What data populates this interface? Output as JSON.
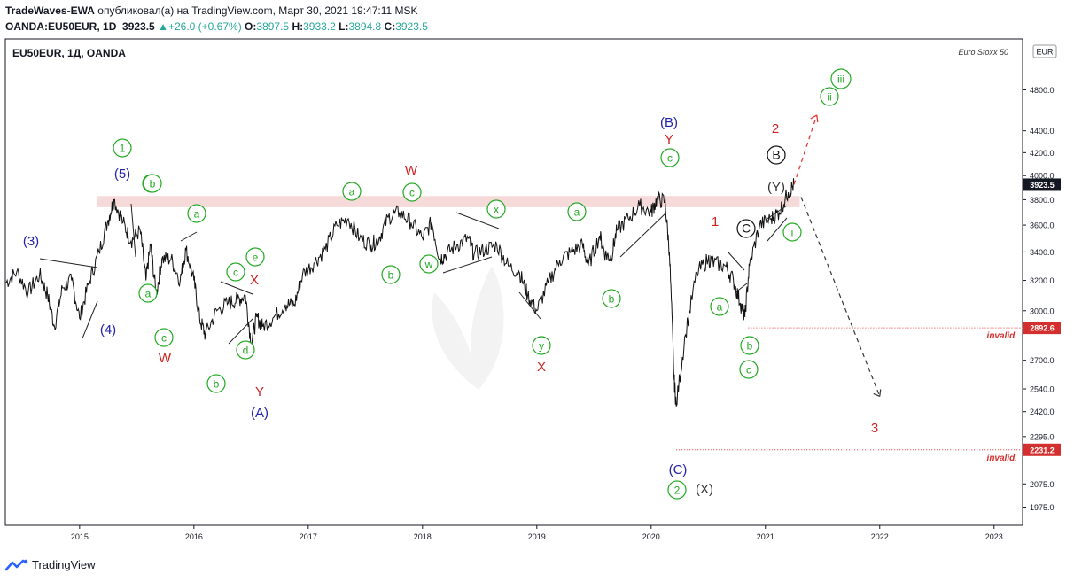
{
  "header": {
    "author": "TradeWaves-EWA",
    "published_text": "опубликовал(а) на TradingView.com, Март 30, 2021 19:47:11 MSK",
    "symbol": "OANDA:EU50EUR, 1D",
    "last": "3923.5",
    "change_arrow": "▲",
    "change": "+26.0 (+0.67%)",
    "o_label": "O:",
    "o": "3897.5",
    "h_label": "H:",
    "h": "3933.2",
    "l_label": "L:",
    "l": "3894.8",
    "c_label": "C:",
    "c": "3923.5"
  },
  "chart_data": {
    "type": "line",
    "title": "EU50EUR, 1Д, OANDA",
    "watermark": "Euro Stoxx 50",
    "currency": "EUR",
    "scale": "log",
    "ylim": [
      1900,
      5350
    ],
    "y_ticks": [
      "4800.0",
      "4400.0",
      "4200.0",
      "4000.0",
      "3800.0",
      "3600.0",
      "3400.0",
      "3200.0",
      "3000.0",
      "2700.0",
      "2540.0",
      "2420.0",
      "2295.0",
      "2075.0",
      "1975.0"
    ],
    "x_ticks": [
      "2015",
      "2016",
      "2017",
      "2018",
      "2019",
      "2020",
      "2021",
      "2022",
      "2023"
    ],
    "xlim": [
      2014.35,
      2023.25
    ],
    "grid": false,
    "price_tags": [
      {
        "value": 3923.5,
        "label": "3923.5",
        "color": "#131722"
      },
      {
        "value": 2892.6,
        "label": "2892.6",
        "color": "#d32f2f"
      },
      {
        "value": 2231.2,
        "label": "2231.2",
        "color": "#d32f2f"
      }
    ],
    "invalidation_labels": [
      "invalid.",
      "invalid."
    ],
    "resistance_zone": [
      3740,
      3830
    ],
    "series": [
      {
        "x": [
          2014.35,
          2014.45,
          2014.55,
          2014.65,
          2014.72,
          2014.78,
          2014.85,
          2014.93,
          2015.0,
          2015.08,
          2015.17,
          2015.25,
          2015.3,
          2015.38,
          2015.45,
          2015.53,
          2015.58,
          2015.62,
          2015.67,
          2015.72,
          2015.8,
          2015.88,
          2015.93,
          2016.0,
          2016.05,
          2016.1,
          2016.2,
          2016.3,
          2016.38,
          2016.45,
          2016.5,
          2016.55,
          2016.6,
          2016.7,
          2016.8,
          2016.88,
          2016.95,
          2017.05,
          2017.15,
          2017.25,
          2017.35,
          2017.45,
          2017.55,
          2017.62,
          2017.7,
          2017.8,
          2017.9,
          2018.0,
          2018.08,
          2018.15,
          2018.2,
          2018.3,
          2018.4,
          2018.45,
          2018.55,
          2018.65,
          2018.75,
          2018.85,
          2018.92,
          2019.0,
          2019.1,
          2019.2,
          2019.3,
          2019.4,
          2019.45,
          2019.55,
          2019.6,
          2019.65,
          2019.7,
          2019.8,
          2019.9,
          2020.0,
          2020.05,
          2020.12,
          2020.16,
          2020.2,
          2020.22,
          2020.3,
          2020.4,
          2020.5,
          2020.55,
          2020.65,
          2020.72,
          2020.78,
          2020.82,
          2020.86,
          2020.95,
          2021.05,
          2021.12,
          2021.2,
          2021.25
        ],
        "values": [
          3180,
          3260,
          3120,
          3240,
          3100,
          2900,
          3150,
          3200,
          2950,
          3180,
          3400,
          3640,
          3800,
          3620,
          3480,
          3560,
          3200,
          3450,
          3100,
          3350,
          3350,
          3200,
          3420,
          3200,
          2950,
          2850,
          3000,
          3050,
          3070,
          3100,
          2800,
          2960,
          2900,
          2960,
          3040,
          3040,
          3240,
          3320,
          3420,
          3600,
          3650,
          3500,
          3450,
          3500,
          3660,
          3700,
          3620,
          3500,
          3620,
          3350,
          3380,
          3450,
          3500,
          3380,
          3420,
          3450,
          3300,
          3250,
          3100,
          3000,
          3180,
          3340,
          3400,
          3450,
          3300,
          3520,
          3380,
          3360,
          3560,
          3650,
          3750,
          3700,
          3800,
          3790,
          3400,
          2600,
          2450,
          2850,
          3250,
          3350,
          3320,
          3300,
          3200,
          3050,
          2960,
          3300,
          3600,
          3650,
          3700,
          3860,
          3923.5
        ]
      }
    ],
    "projection": {
      "up_target": 4550,
      "down_target": 2500
    },
    "wave_labels": [
      {
        "text": "(3)",
        "style": "plain",
        "color": "#2222aa"
      },
      {
        "text": "(4)",
        "style": "plain",
        "color": "#2222aa"
      },
      {
        "text": "1",
        "style": "circle",
        "color": "#22aa22"
      },
      {
        "text": "(5)",
        "style": "plain",
        "color": "#2222aa"
      },
      {
        "text": "b",
        "style": "circle",
        "color": "#22aa22"
      },
      {
        "text": "a",
        "style": "circle",
        "color": "#22aa22"
      },
      {
        "text": "a",
        "style": "circle",
        "color": "#22aa22"
      },
      {
        "text": "c",
        "style": "circle",
        "color": "#22aa22"
      },
      {
        "text": "W",
        "style": "plain",
        "color": "#cc2222"
      },
      {
        "text": "b",
        "style": "circle",
        "color": "#22aa22"
      },
      {
        "text": "c",
        "style": "circle",
        "color": "#22aa22"
      },
      {
        "text": "e",
        "style": "circle",
        "color": "#22aa22"
      },
      {
        "text": "X",
        "style": "plain",
        "color": "#cc2222"
      },
      {
        "text": "d",
        "style": "circle",
        "color": "#22aa22"
      },
      {
        "text": "Y",
        "style": "plain",
        "color": "#cc2222"
      },
      {
        "text": "(A)",
        "style": "plain",
        "color": "#2222aa"
      },
      {
        "text": "a",
        "style": "circle",
        "color": "#22aa22"
      },
      {
        "text": "W",
        "style": "plain",
        "color": "#cc2222"
      },
      {
        "text": "c",
        "style": "circle",
        "color": "#22aa22"
      },
      {
        "text": "b",
        "style": "circle",
        "color": "#22aa22"
      },
      {
        "text": "w",
        "style": "circle",
        "color": "#22aa22"
      },
      {
        "text": "x",
        "style": "circle",
        "color": "#22aa22"
      },
      {
        "text": "y",
        "style": "circle",
        "color": "#22aa22"
      },
      {
        "text": "X",
        "style": "plain",
        "color": "#cc2222"
      },
      {
        "text": "a",
        "style": "circle",
        "color": "#22aa22"
      },
      {
        "text": "b",
        "style": "circle",
        "color": "#22aa22"
      },
      {
        "text": "(B)",
        "style": "plain",
        "color": "#2222aa"
      },
      {
        "text": "Y",
        "style": "plain",
        "color": "#cc2222"
      },
      {
        "text": "c",
        "style": "circle",
        "color": "#22aa22"
      },
      {
        "text": "(C)",
        "style": "plain",
        "color": "#2222aa"
      },
      {
        "text": "2",
        "style": "circle",
        "color": "#22aa22"
      },
      {
        "text": "(X)",
        "style": "plain",
        "color": "#333333"
      },
      {
        "text": "1",
        "style": "plain",
        "color": "#cc2222"
      },
      {
        "text": "a",
        "style": "circle",
        "color": "#22aa22"
      },
      {
        "text": "b",
        "style": "circle",
        "color": "#22aa22"
      },
      {
        "text": "c",
        "style": "circle",
        "color": "#22aa22"
      },
      {
        "text": "2",
        "style": "plain",
        "color": "#cc2222"
      },
      {
        "text": "B",
        "style": "circle",
        "color": "#111111"
      },
      {
        "text": "(Y)",
        "style": "plain",
        "color": "#333333"
      },
      {
        "text": "i",
        "style": "circle",
        "color": "#22aa22"
      },
      {
        "text": "ii",
        "style": "circle",
        "color": "#22aa22"
      },
      {
        "text": "iii",
        "style": "circle",
        "color": "#22aa22"
      },
      {
        "text": "3",
        "style": "plain",
        "color": "#cc2222"
      },
      {
        "text": "C",
        "style": "circle",
        "color": "#111111"
      },
      {
        "text": "b",
        "style": "circle",
        "color": "#22aa22"
      }
    ]
  },
  "footer": {
    "brand": "TradingView"
  }
}
